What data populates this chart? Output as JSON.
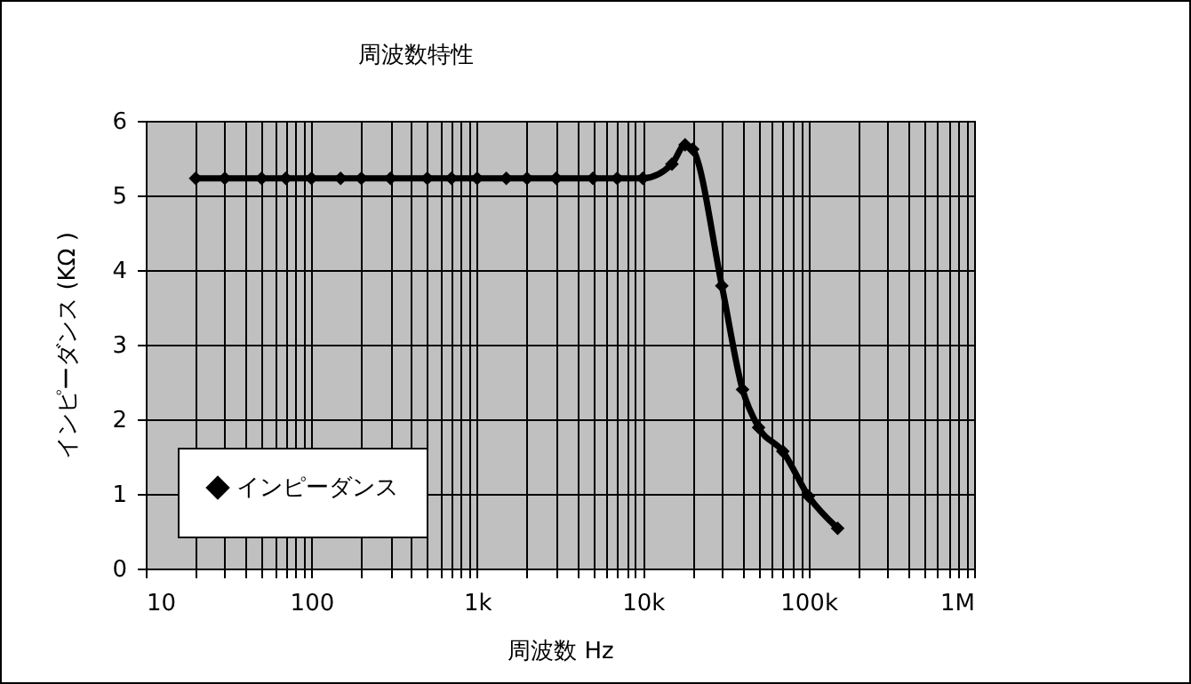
{
  "chart_data": {
    "type": "line",
    "title": "周波数特性",
    "xlabel": "周波数 Hz",
    "ylabel": "インピーダンス (KΩ )",
    "x": [
      20,
      30,
      50,
      70,
      100,
      150,
      200,
      300,
      500,
      700,
      1000,
      1500,
      2000,
      3000,
      5000,
      7000,
      10000,
      15000,
      18000,
      20000,
      30000,
      40000,
      50000,
      70000,
      100000,
      150000
    ],
    "series": [
      {
        "name": "インピーダンス",
        "color": "#000000",
        "values": [
          5.23,
          5.23,
          5.23,
          5.23,
          5.23,
          5.23,
          5.23,
          5.23,
          5.23,
          5.23,
          5.23,
          5.23,
          5.23,
          5.23,
          5.23,
          5.23,
          5.23,
          5.42,
          5.68,
          5.62,
          3.79,
          2.4,
          1.89,
          1.57,
          0.97,
          0.54
        ]
      }
    ],
    "xlim": [
      10,
      1000000
    ],
    "xticks": [
      10,
      100,
      {
        "value": 1000,
        "label": "1k"
      },
      {
        "value": 10000,
        "label": "10k"
      },
      {
        "value": 100000,
        "label": "100k"
      },
      {
        "value": 1000000,
        "label": "1M"
      }
    ],
    "ylim": [
      0,
      6
    ],
    "yticks": [
      0,
      1,
      2,
      3,
      4,
      5,
      6
    ],
    "log": "x",
    "grid": true,
    "legend": "bottom left",
    "marker": "diamond",
    "line_style": "solid"
  }
}
